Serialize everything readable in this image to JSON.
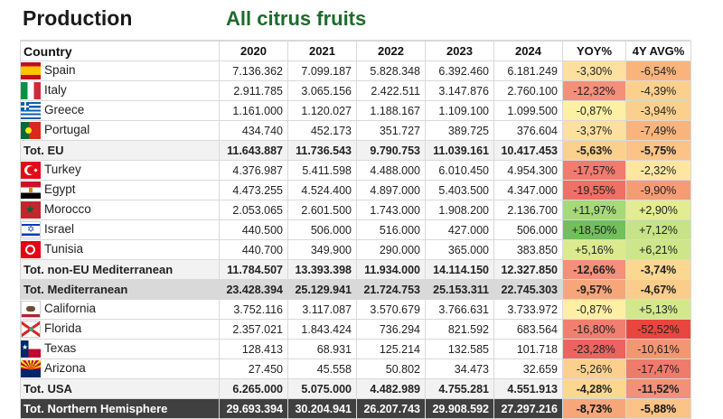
{
  "title": "Production",
  "subtitle": "All citrus fruits",
  "headers": [
    "Country",
    "2020",
    "2021",
    "2022",
    "2023",
    "2024",
    "YOY%",
    "4Y AVG%"
  ],
  "rows": [
    {
      "name": "Spain",
      "type": "country",
      "flag": "spain-flag-icon",
      "values": [
        "7.136.362",
        "7.099.187",
        "5.828.348",
        "6.392.460",
        "6.181.249"
      ],
      "yoy": "-3,30%",
      "avg": "-6,54%",
      "yoy_color": "#fde0a0",
      "avg_color": "#f8b47c"
    },
    {
      "name": "Italy",
      "type": "country",
      "flag": "italy-flag-icon",
      "values": [
        "2.911.785",
        "3.065.156",
        "2.422.511",
        "3.147.876",
        "2.760.100"
      ],
      "yoy": "-12,32%",
      "avg": "-4,39%",
      "yoy_color": "#f4907a",
      "avg_color": "#fbd08c"
    },
    {
      "name": "Greece",
      "type": "country",
      "flag": "greece-flag-icon",
      "values": [
        "1.161.000",
        "1.120.027",
        "1.188.167",
        "1.109.100",
        "1.099.500"
      ],
      "yoy": "-0,87%",
      "avg": "-3,94%",
      "yoy_color": "#fdf0a4",
      "avg_color": "#fbd08c"
    },
    {
      "name": "Portugal",
      "type": "country",
      "flag": "portugal-flag-icon",
      "values": [
        "434.740",
        "452.173",
        "351.727",
        "389.725",
        "376.604"
      ],
      "yoy": "-3,37%",
      "avg": "-7,49%",
      "yoy_color": "#fde0a0",
      "avg_color": "#f8b47c"
    },
    {
      "name": "Tot. EU",
      "type": "tot",
      "values": [
        "11.643.887",
        "11.736.543",
        "9.790.753",
        "11.039.161",
        "10.417.453"
      ],
      "yoy": "-5,63%",
      "avg": "-5,75%",
      "yoy_color": "#fbd08c",
      "avg_color": "#fbc386"
    },
    {
      "name": "Turkey",
      "type": "country",
      "flag": "turkey-flag-icon",
      "values": [
        "4.376.987",
        "5.411.598",
        "4.488.000",
        "6.010.450",
        "4.954.300"
      ],
      "yoy": "-17,57%",
      "avg": "-2,32%",
      "yoy_color": "#f07b6e",
      "avg_color": "#fde6a0"
    },
    {
      "name": "Egypt",
      "type": "country",
      "flag": "egypt-flag-icon",
      "values": [
        "4.473.255",
        "4.524.400",
        "4.897.000",
        "5.403.500",
        "4.347.000"
      ],
      "yoy": "-19,55%",
      "avg": "-9,90%",
      "yoy_color": "#ee7066",
      "avg_color": "#f59c74"
    },
    {
      "name": "Morocco",
      "type": "country",
      "flag": "morocco-flag-icon",
      "values": [
        "2.053.065",
        "2.601.500",
        "1.743.000",
        "1.908.200",
        "2.136.700"
      ],
      "yoy": "+11,97%",
      "avg": "+2,90%",
      "yoy_color": "#a6d97a",
      "avg_color": "#e3ec90"
    },
    {
      "name": "Israel",
      "type": "country",
      "flag": "israel-flag-icon",
      "values": [
        "440.500",
        "506.000",
        "516.000",
        "427.000",
        "506.000"
      ],
      "yoy": "+18,50%",
      "avg": "+7,12%",
      "yoy_color": "#72bf5c",
      "avg_color": "#c6e387"
    },
    {
      "name": "Tunisia",
      "type": "country",
      "flag": "tunisia-flag-icon",
      "values": [
        "440.700",
        "349.900",
        "290.000",
        "365.000",
        "383.850"
      ],
      "yoy": "+5,16%",
      "avg": "+6,21%",
      "yoy_color": "#dcea8e",
      "avg_color": "#cde68a"
    },
    {
      "name": "Tot. non-EU Mediterranean",
      "type": "tot",
      "values": [
        "11.784.507",
        "13.393.398",
        "11.934.000",
        "14.114.150",
        "12.327.850"
      ],
      "yoy": "-12,66%",
      "avg": "-3,74%",
      "yoy_color": "#f4907a",
      "avg_color": "#fbd78f"
    },
    {
      "name": "Tot. Mediterranean",
      "type": "tot-strong",
      "values": [
        "23.428.394",
        "25.129.941",
        "21.724.753",
        "25.153.311",
        "22.745.303"
      ],
      "yoy": "-9,57%",
      "avg": "-4,67%",
      "yoy_color": "#f7a67a",
      "avg_color": "#fbcd8a"
    },
    {
      "name": "California",
      "type": "country",
      "flag": "california-flag-icon",
      "values": [
        "3.752.116",
        "3.117.087",
        "3.570.679",
        "3.766.631",
        "3.733.972"
      ],
      "yoy": "-0,87%",
      "avg": "+5,13%",
      "yoy_color": "#fdf0a4",
      "avg_color": "#d3e88b"
    },
    {
      "name": "Florida",
      "type": "country",
      "flag": "florida-flag-icon",
      "values": [
        "2.357.021",
        "1.843.424",
        "736.294",
        "821.592",
        "683.564"
      ],
      "yoy": "-16,80%",
      "avg": "-52,52%",
      "yoy_color": "#f17f70",
      "avg_color": "#e8463f"
    },
    {
      "name": "Texas",
      "type": "country",
      "flag": "texas-flag-icon",
      "values": [
        "128.413",
        "68.931",
        "125.214",
        "132.585",
        "101.718"
      ],
      "yoy": "-23,28%",
      "avg": "-10,61%",
      "yoy_color": "#ec6460",
      "avg_color": "#f49672"
    },
    {
      "name": "Arizona",
      "type": "country",
      "flag": "arizona-flag-icon",
      "values": [
        "27.450",
        "45.558",
        "50.802",
        "34.473",
        "32.659"
      ],
      "yoy": "-5,26%",
      "avg": "-17,47%",
      "yoy_color": "#fbd08c",
      "avg_color": "#ef7b6c"
    },
    {
      "name": "Tot. USA",
      "type": "tot",
      "values": [
        "6.265.000",
        "5.075.000",
        "4.482.989",
        "4.755.281",
        "4.551.913"
      ],
      "yoy": "-4,28%",
      "avg": "-11,52%",
      "yoy_color": "#fcd88f",
      "avg_color": "#f4907a"
    },
    {
      "name": "Tot. Northern Hemisphere",
      "type": "tot-dark",
      "values": [
        "29.693.394",
        "30.204.941",
        "26.207.743",
        "29.908.592",
        "27.297.216"
      ],
      "yoy": "-8,73%",
      "avg": "-5,88%",
      "yoy_color": "#f7a67a",
      "avg_color": "#fbc386"
    }
  ]
}
